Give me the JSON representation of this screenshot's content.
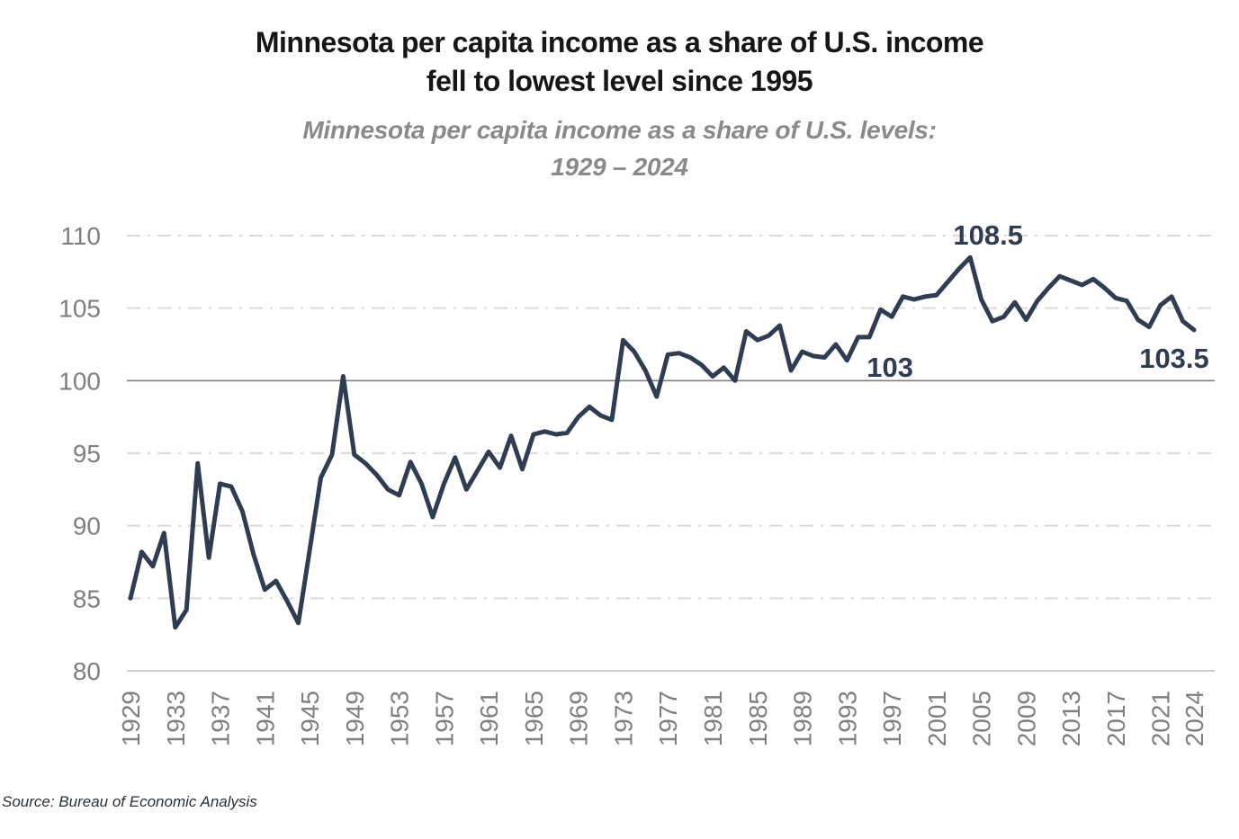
{
  "header": {
    "title_line1": "Minnesota per capita income as a share of U.S. income",
    "title_line2": "fell to lowest level since 1995",
    "subtitle_line1": "Minnesota per capita income as a share of U.S. levels:",
    "subtitle_line2": "1929 – 2024"
  },
  "source_note": "Source: Bureau of Economic Analysis",
  "chart_data": {
    "type": "line",
    "title": "Minnesota per capita income as a share of U.S. income fell to lowest level since 1995",
    "subtitle": "Minnesota per capita income as a share of U.S. levels: 1929 – 2024",
    "xlabel": "",
    "ylabel": "",
    "ylim": [
      80,
      110
    ],
    "yticks": [
      80,
      85,
      90,
      95,
      100,
      105,
      110
    ],
    "xticks": [
      1929,
      1933,
      1937,
      1941,
      1945,
      1949,
      1953,
      1957,
      1961,
      1965,
      1969,
      1973,
      1977,
      1981,
      1985,
      1989,
      1993,
      1997,
      2001,
      2005,
      2009,
      2013,
      2017,
      2021,
      2024
    ],
    "grid": "horizontal-dashdot",
    "legend": "none",
    "line_color": "#2e3d52",
    "gridline_color": "#d9d9d9",
    "baseline_100_color": "#7f7f7f",
    "axis_line_color": "#bfbfbf",
    "tick_label_color": "#7f7f7f",
    "annotation_color": "#2e3d52",
    "series_name": "Minnesota per capita income as % of U.S.",
    "x": [
      1929,
      1930,
      1931,
      1932,
      1933,
      1934,
      1935,
      1936,
      1937,
      1938,
      1939,
      1940,
      1941,
      1942,
      1943,
      1944,
      1945,
      1946,
      1947,
      1948,
      1949,
      1950,
      1951,
      1952,
      1953,
      1954,
      1955,
      1956,
      1957,
      1958,
      1959,
      1960,
      1961,
      1962,
      1963,
      1964,
      1965,
      1966,
      1967,
      1968,
      1969,
      1970,
      1971,
      1972,
      1973,
      1974,
      1975,
      1976,
      1977,
      1978,
      1979,
      1980,
      1981,
      1982,
      1983,
      1984,
      1985,
      1986,
      1987,
      1988,
      1989,
      1990,
      1991,
      1992,
      1993,
      1994,
      1995,
      1996,
      1997,
      1998,
      1999,
      2000,
      2001,
      2002,
      2003,
      2004,
      2005,
      2006,
      2007,
      2008,
      2009,
      2010,
      2011,
      2012,
      2013,
      2014,
      2015,
      2016,
      2017,
      2018,
      2019,
      2020,
      2021,
      2022,
      2023,
      2024
    ],
    "values": [
      85.0,
      88.2,
      87.2,
      89.5,
      83.0,
      84.2,
      94.3,
      87.8,
      92.9,
      92.7,
      91.0,
      88.0,
      85.6,
      86.2,
      84.8,
      83.3,
      88.3,
      93.3,
      94.9,
      100.3,
      94.9,
      94.3,
      93.5,
      92.5,
      92.1,
      94.4,
      92.9,
      90.6,
      92.9,
      94.7,
      92.5,
      93.8,
      95.1,
      94.0,
      96.2,
      93.9,
      96.3,
      96.5,
      96.3,
      96.4,
      97.5,
      98.2,
      97.6,
      97.3,
      102.8,
      102.0,
      100.7,
      98.9,
      101.8,
      101.9,
      101.6,
      101.1,
      100.3,
      100.9,
      100.0,
      103.4,
      102.8,
      103.1,
      103.8,
      100.7,
      102.0,
      101.7,
      101.6,
      102.5,
      101.4,
      103.0,
      103.0,
      104.9,
      104.4,
      105.8,
      105.6,
      105.8,
      105.9,
      106.8,
      107.7,
      108.5,
      105.6,
      104.1,
      104.4,
      105.4,
      104.2,
      105.5,
      106.4,
      107.2,
      106.9,
      106.6,
      107.0,
      106.4,
      105.7,
      105.5,
      104.2,
      103.7,
      105.2,
      105.8,
      104.1,
      103.5
    ],
    "annotations": [
      {
        "text": "108.5",
        "year": 2004,
        "value": 108.5,
        "placement": "above"
      },
      {
        "text": "103",
        "year": 1995,
        "value": 103.0,
        "placement": "below"
      },
      {
        "text": "103.5",
        "year": 2024,
        "value": 103.5,
        "placement": "below_left"
      }
    ]
  }
}
